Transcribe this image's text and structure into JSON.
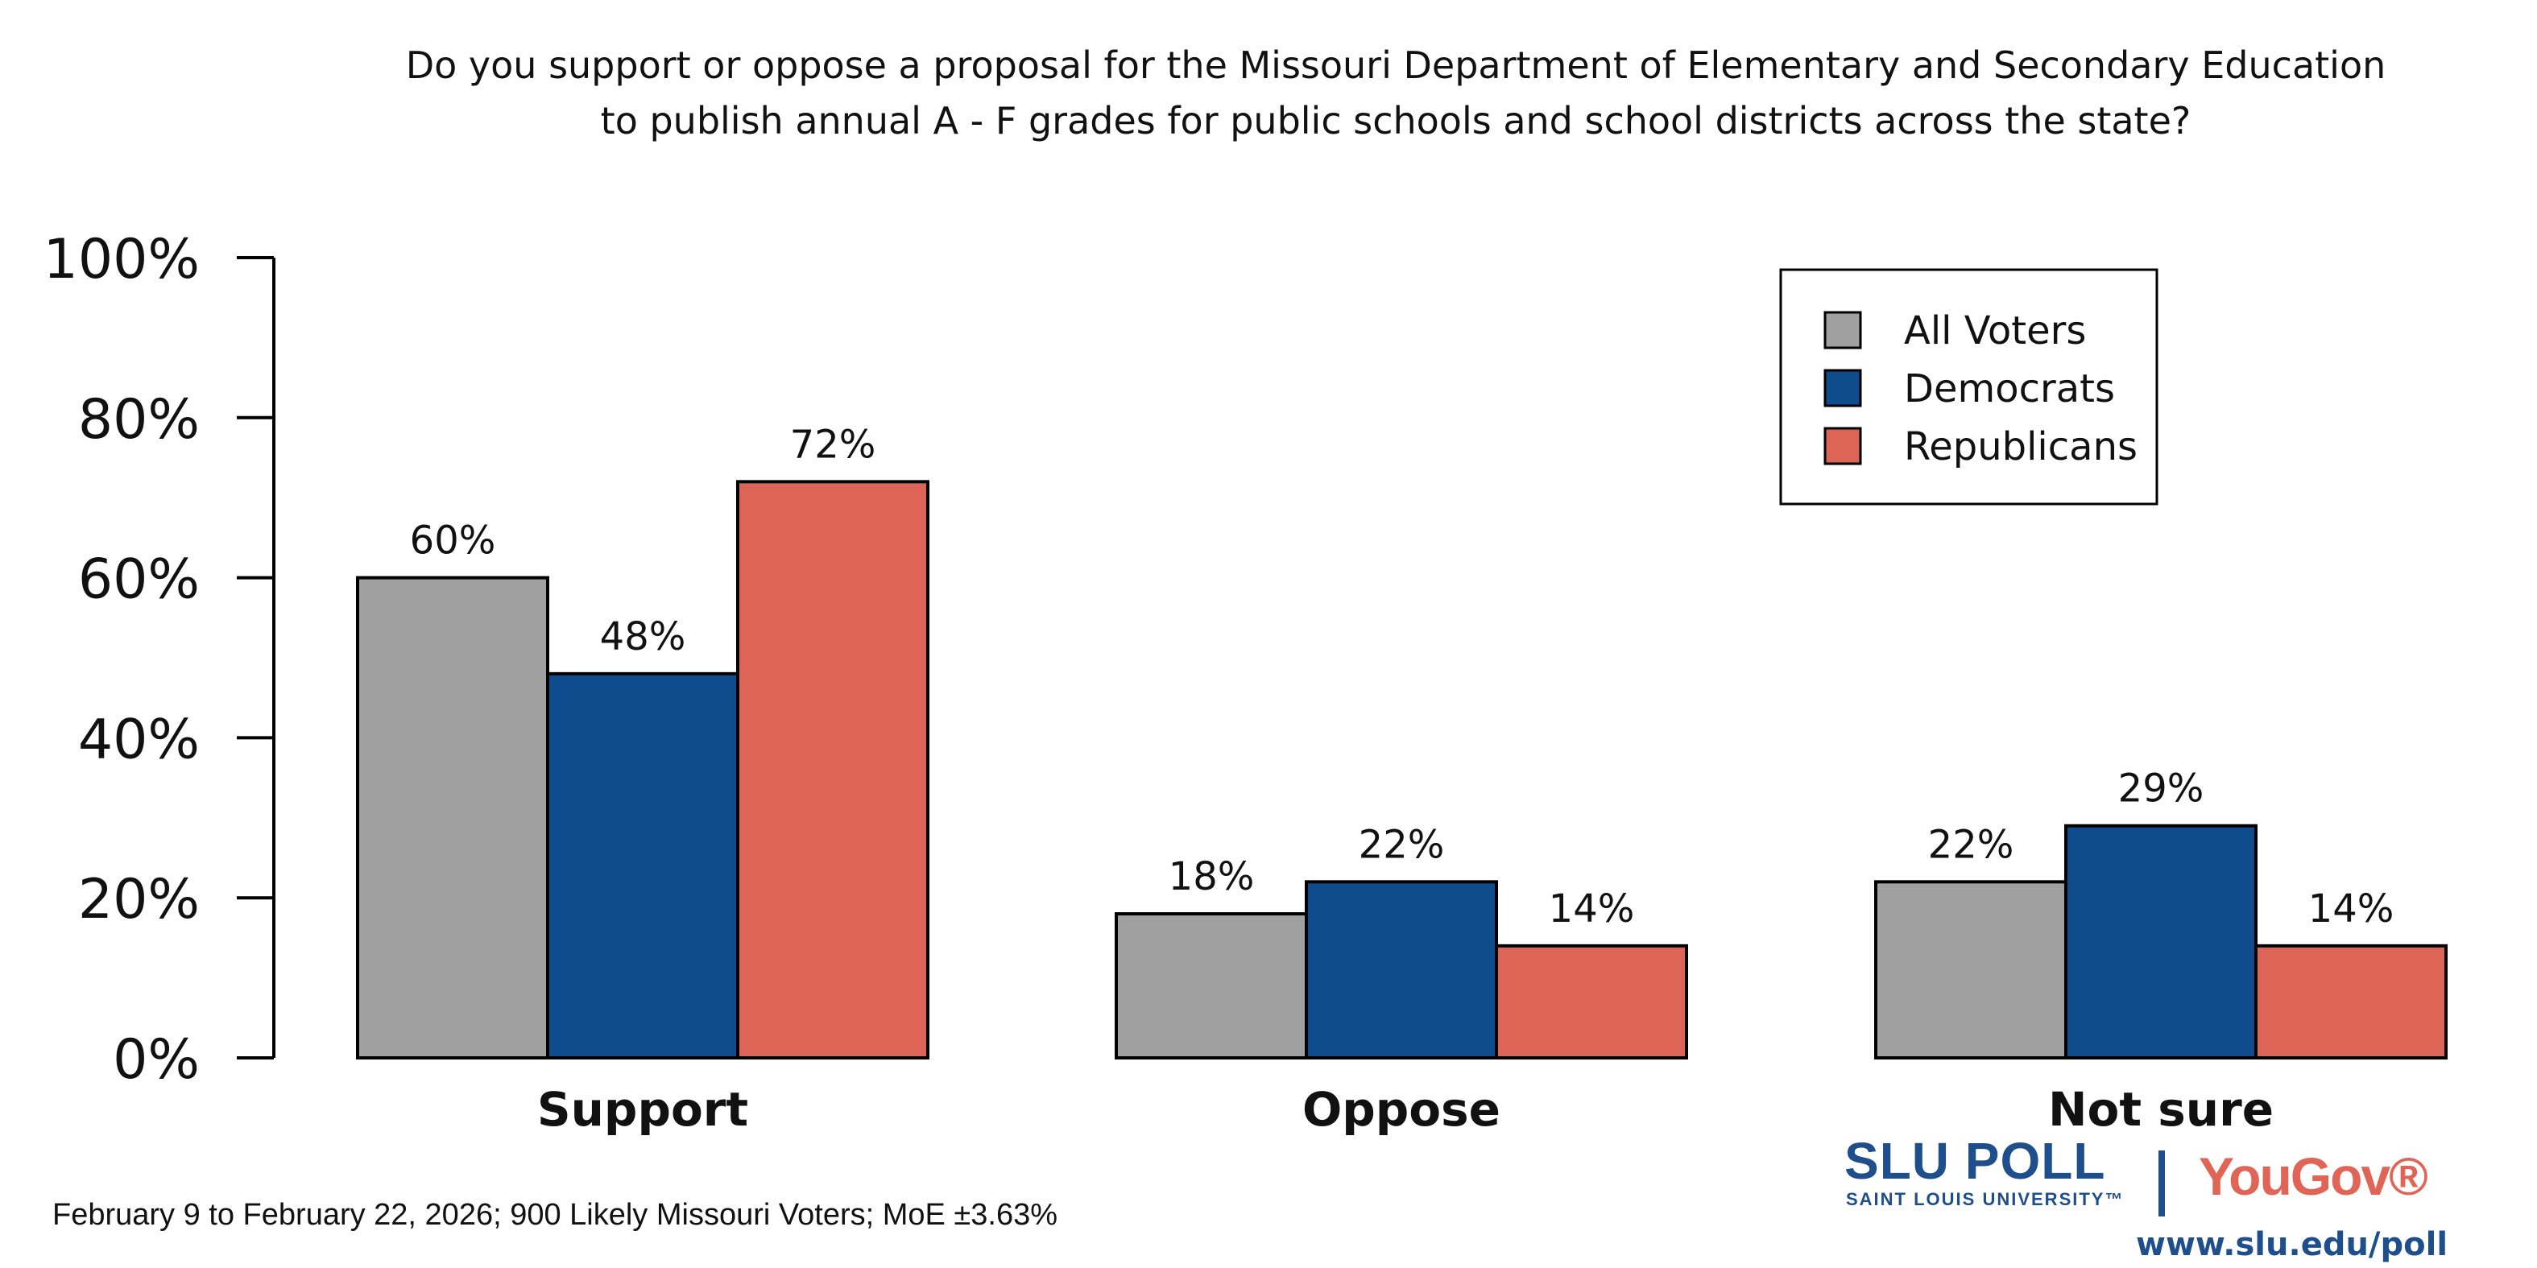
{
  "chart_data": {
    "type": "bar",
    "title": [
      "Do you support or oppose a proposal for the Missouri Department of Elementary and Secondary Education",
      "to publish annual A - F grades for public schools and school districts across the state?"
    ],
    "categories": [
      "Support",
      "Oppose",
      "Not sure"
    ],
    "series": [
      {
        "name": "All Voters",
        "color": "#a0a0a0",
        "values": [
          60,
          18,
          22
        ]
      },
      {
        "name": "Democrats",
        "color": "#0e4c8e",
        "values": [
          48,
          22,
          29
        ]
      },
      {
        "name": "Republicans",
        "color": "#dd6558",
        "values": [
          72,
          14,
          14
        ]
      }
    ],
    "ylim": [
      0,
      100
    ],
    "yticks": [
      "0%",
      "20%",
      "40%",
      "60%",
      "80%",
      "100%"
    ],
    "value_suffix": "%",
    "grid": false,
    "legend_placement": "top-right"
  },
  "footer": {
    "note": "February 9 to February 22, 2026; 900 Likely Missouri Voters; MoE ±3.63%",
    "logo_slu": "SLU POLL",
    "logo_slu_sub": "SAINT LOUIS UNIVERSITY™",
    "logo_yougov": "YouGov®",
    "url": "www.slu.edu/poll"
  }
}
